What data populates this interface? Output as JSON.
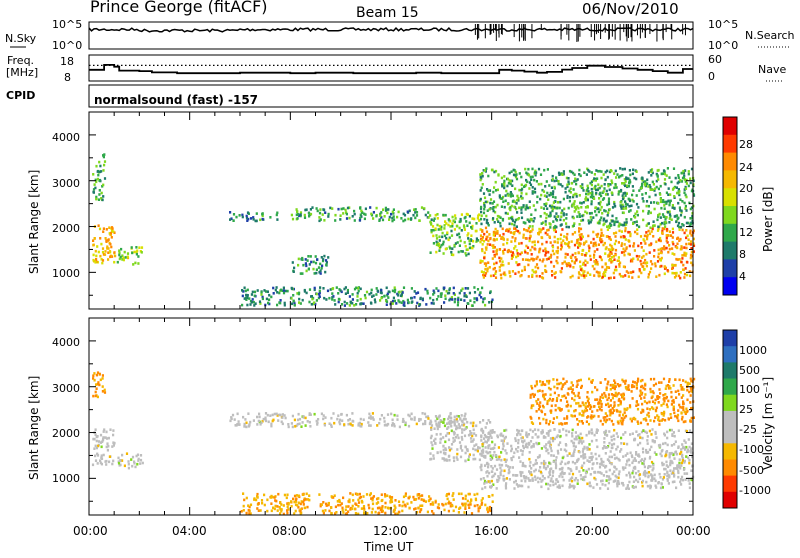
{
  "header": {
    "station": "Prince George (fitACF)",
    "beam": "Beam 15",
    "date": "06/Nov/2010"
  },
  "nsky_panel": {
    "left_label": "N.Sky",
    "right_label": "N.Search",
    "tick_labels_left": [
      "10^5",
      "10^0"
    ],
    "tick_labels_right": [
      "10^5",
      "10^0"
    ]
  },
  "freq_panel": {
    "left_label_1": "Freq.",
    "left_label_2": "[MHz]",
    "right_label": "Nave",
    "tick_labels_left": [
      "18",
      "8"
    ],
    "tick_labels_right": [
      "60",
      "0"
    ]
  },
  "cpid_panel": {
    "left_label": "CPID",
    "text": "normalsound (fast) -157"
  },
  "power_panel": {
    "ylabel": "Slant Range [km]",
    "yticks": [
      "4000",
      "3000",
      "2000",
      "1000"
    ],
    "colorbar_label": "Power [dB]",
    "colorbar_ticks": [
      "28",
      "24",
      "20",
      "16",
      "12",
      "8",
      "4"
    ],
    "colorbar_colors": [
      "#e00000",
      "#ff3a00",
      "#ff8a00",
      "#f5b800",
      "#d8e000",
      "#7fd81e",
      "#2fa84a",
      "#1e7a6a",
      "#1e3fa8",
      "#0000f0"
    ]
  },
  "velocity_panel": {
    "ylabel": "Slant Range [km]",
    "yticks": [
      "4000",
      "3000",
      "2000",
      "1000"
    ],
    "colorbar_label": "Velocity [m s⁻¹]",
    "colorbar_ticks": [
      "1000",
      "500",
      "100",
      "25",
      "-25",
      "-100",
      "-500",
      "-1000"
    ],
    "colorbar_colors": [
      "#1e3fa8",
      "#2e6fc0",
      "#1e7a6a",
      "#2fa84a",
      "#7fd81e",
      "#bebebe",
      "#bebebe",
      "#f5b800",
      "#ff8a00",
      "#ff3a00",
      "#e00000"
    ]
  },
  "xaxis": {
    "label": "Time UT",
    "ticks": [
      "00:00",
      "04:00",
      "08:00",
      "12:00",
      "16:00",
      "20:00",
      "00:00"
    ]
  },
  "chart_data": [
    {
      "type": "line",
      "title": "N.Sky / N.Search",
      "x": [
        0,
        24
      ],
      "ylim": [
        0,
        5
      ],
      "yscale": "log"
    },
    {
      "type": "line",
      "title": "Freq. [MHz] / Nave",
      "xlim": [
        0,
        24
      ],
      "ylim_freq": [
        8,
        18
      ],
      "ylim_nave": [
        0,
        60
      ],
      "series": [
        {
          "name": "Freq.",
          "x": [
            0,
            0.5,
            0.6,
            1.0,
            1.2,
            2.0,
            2.5,
            3.5,
            5.0,
            6.0,
            8.0,
            9.0,
            10.5,
            11.5,
            13.0,
            14.0,
            15.0,
            15.6,
            16.3,
            16.8,
            17.3,
            17.8,
            18.2,
            18.8,
            19.2,
            19.8,
            20.5,
            21.2,
            21.8,
            22.4,
            23.0,
            23.6,
            24.0
          ],
          "y": [
            12.3,
            12.3,
            14.2,
            13.5,
            12.0,
            11.8,
            11.3,
            11.0,
            11.0,
            11.2,
            11.0,
            11.2,
            11.0,
            11.0,
            11.2,
            11.0,
            11.0,
            11.0,
            12.3,
            12.0,
            11.6,
            11.2,
            11.5,
            12.4,
            13.0,
            13.9,
            13.4,
            12.8,
            12.3,
            11.8,
            11.2,
            12.6,
            12.6
          ]
        },
        {
          "name": "Nave",
          "x": [
            0,
            24
          ],
          "y": [
            36,
            36
          ]
        }
      ]
    },
    {
      "type": "heatmap",
      "title": "Power [dB]",
      "xlim": [
        0,
        24
      ],
      "ylim": [
        200,
        4500
      ],
      "zlim": [
        0,
        30
      ],
      "features": [
        {
          "t0": 0.1,
          "t1": 1.0,
          "r0": 1200,
          "r1": 2100,
          "z": 20
        },
        {
          "t0": 0.1,
          "t1": 0.6,
          "r0": 2600,
          "r1": 3600,
          "z": 10
        },
        {
          "t0": 1.1,
          "t1": 2.1,
          "r0": 1200,
          "r1": 1600,
          "z": 14
        },
        {
          "t0": 5.5,
          "t1": 7.5,
          "r0": 2150,
          "r1": 2350,
          "z": 8
        },
        {
          "t0": 8.0,
          "t1": 13.5,
          "r0": 2150,
          "r1": 2450,
          "z": 9
        },
        {
          "t0": 13.5,
          "t1": 15.5,
          "r0": 1400,
          "r1": 2300,
          "z": 12
        },
        {
          "t0": 8.0,
          "t1": 9.5,
          "r0": 1000,
          "r1": 1400,
          "z": 8
        },
        {
          "t0": 6.0,
          "t1": 16.0,
          "r0": 300,
          "r1": 700,
          "z": 8
        },
        {
          "t0": 15.5,
          "t1": 24.0,
          "r0": 900,
          "r1": 2000,
          "z": 22
        },
        {
          "t0": 15.5,
          "t1": 24.0,
          "r0": 2000,
          "r1": 3300,
          "z": 10
        }
      ]
    },
    {
      "type": "heatmap",
      "title": "Velocity [m s-1]",
      "xlim": [
        0,
        24
      ],
      "ylim": [
        200,
        4500
      ],
      "zlim": [
        -1000,
        1000
      ],
      "features": [
        {
          "t0": 0.1,
          "t1": 1.0,
          "r0": 1300,
          "r1": 2100,
          "z": 0
        },
        {
          "t0": 0.1,
          "t1": 0.6,
          "r0": 2800,
          "r1": 3400,
          "z": -300
        },
        {
          "t0": 1.1,
          "t1": 2.1,
          "r0": 1250,
          "r1": 1600,
          "z": 0
        },
        {
          "t0": 5.5,
          "t1": 15.0,
          "r0": 2150,
          "r1": 2450,
          "z": 0
        },
        {
          "t0": 13.5,
          "t1": 16.0,
          "r0": 1400,
          "r1": 2300,
          "z": 0
        },
        {
          "t0": 15.5,
          "t1": 24.0,
          "r0": 800,
          "r1": 2100,
          "z": 0
        },
        {
          "t0": 17.5,
          "t1": 24.0,
          "r0": 2200,
          "r1": 3200,
          "z": -300
        },
        {
          "t0": 6.0,
          "t1": 16.0,
          "r0": 250,
          "r1": 700,
          "z": -100
        }
      ]
    }
  ]
}
